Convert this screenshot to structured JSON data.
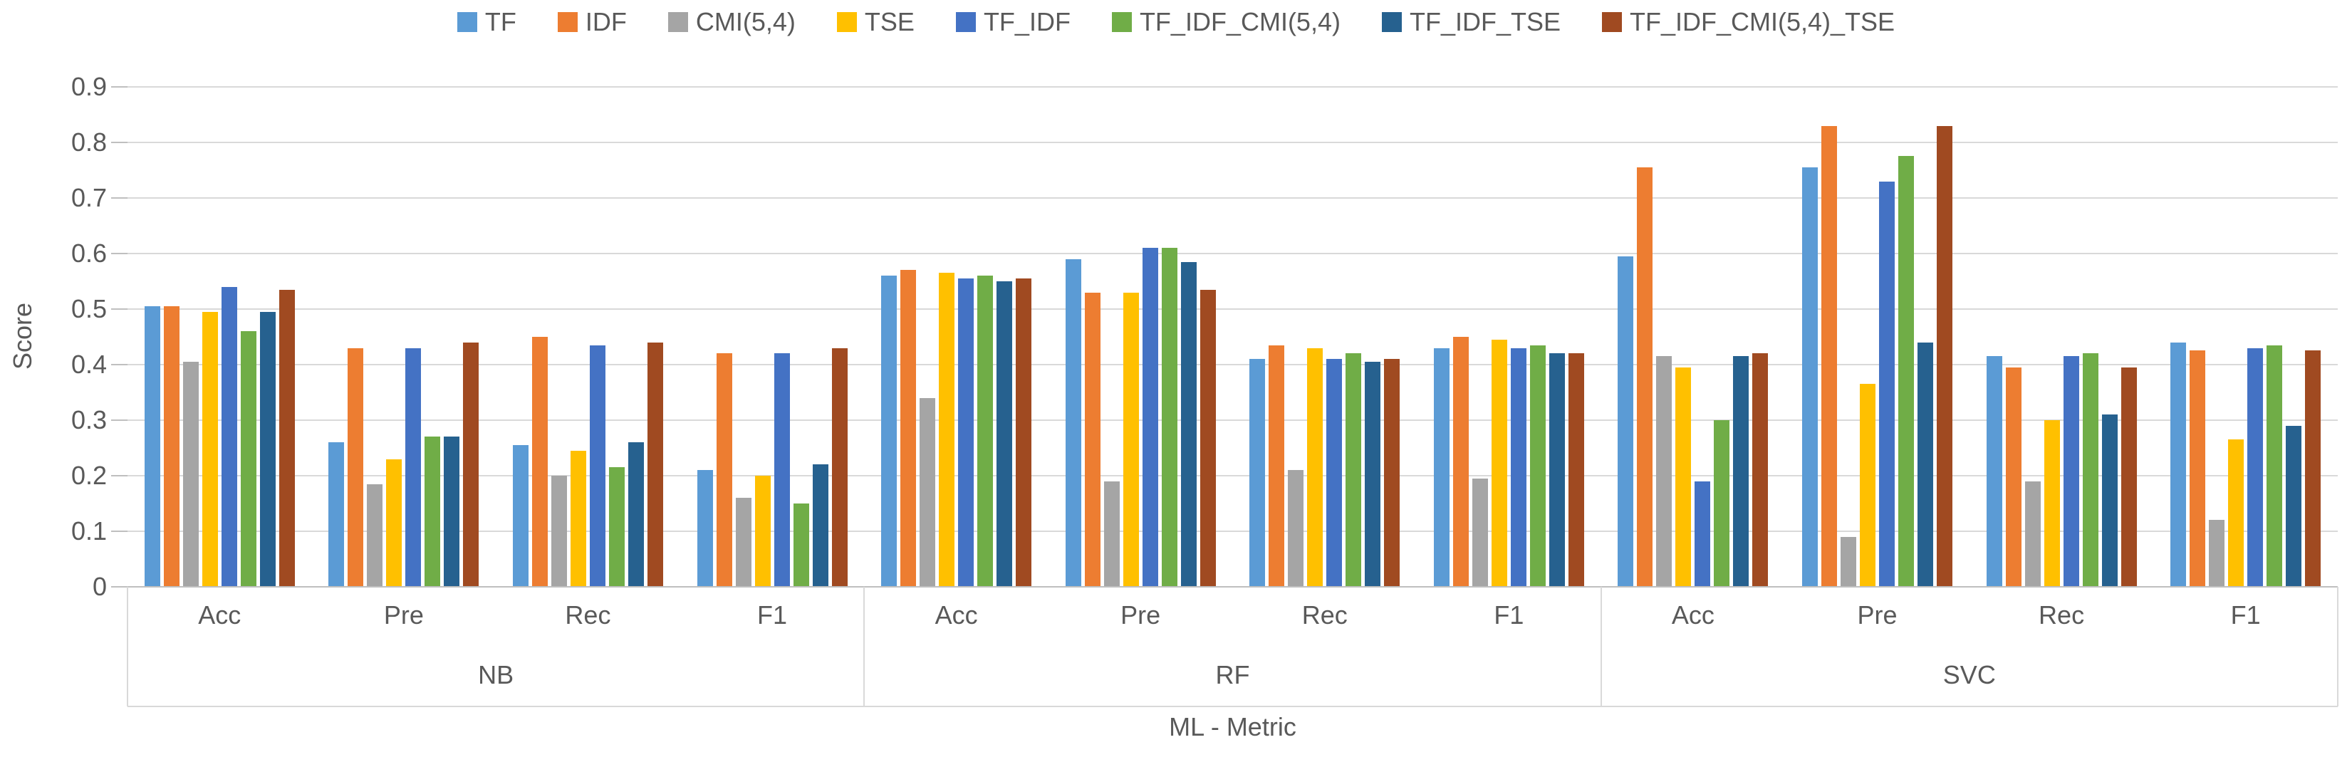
{
  "chart_data": {
    "type": "bar",
    "title": "",
    "ylabel": "Score",
    "xlabel": "ML - Metric",
    "ylim": [
      0,
      0.9
    ],
    "ytick_step": 0.1,
    "ytick_labels": [
      "0",
      "0.1",
      "0.2",
      "0.3",
      "0.4",
      "0.5",
      "0.6",
      "0.7",
      "0.8",
      "0.9"
    ],
    "grid": true,
    "legend_position": "top-center",
    "groups": [
      "NB",
      "RF",
      "SVC"
    ],
    "metrics": [
      "Acc",
      "Pre",
      "Rec",
      "F1"
    ],
    "categories": [
      "NB-Acc",
      "NB-Pre",
      "NB-Rec",
      "NB-F1",
      "RF-Acc",
      "RF-Pre",
      "RF-Rec",
      "RF-F1",
      "SVC-Acc",
      "SVC-Pre",
      "SVC-Rec",
      "SVC-F1"
    ],
    "series": [
      {
        "name": "TF",
        "color": "#5B9BD5",
        "values": [
          0.505,
          0.26,
          0.255,
          0.21,
          0.56,
          0.59,
          0.41,
          0.43,
          0.595,
          0.755,
          0.415,
          0.44
        ]
      },
      {
        "name": "IDF",
        "color": "#ED7D31",
        "values": [
          0.505,
          0.43,
          0.45,
          0.42,
          0.57,
          0.53,
          0.435,
          0.45,
          0.755,
          0.83,
          0.395,
          0.425
        ]
      },
      {
        "name": "CMI(5,4)",
        "color": "#A5A5A5",
        "values": [
          0.405,
          0.185,
          0.2,
          0.16,
          0.34,
          0.19,
          0.21,
          0.195,
          0.415,
          0.09,
          0.19,
          0.12
        ]
      },
      {
        "name": "TSE",
        "color": "#FFC000",
        "values": [
          0.495,
          0.23,
          0.245,
          0.2,
          0.565,
          0.53,
          0.43,
          0.445,
          0.395,
          0.365,
          0.3,
          0.265
        ]
      },
      {
        "name": "TF_IDF",
        "color": "#4472C4",
        "values": [
          0.54,
          0.43,
          0.435,
          0.42,
          0.555,
          0.61,
          0.41,
          0.43,
          0.19,
          0.73,
          0.415,
          0.43
        ]
      },
      {
        "name": "TF_IDF_CMI(5,4)",
        "color": "#70AD47",
        "values": [
          0.46,
          0.27,
          0.215,
          0.15,
          0.56,
          0.61,
          0.42,
          0.435,
          0.3,
          0.775,
          0.42,
          0.435
        ]
      },
      {
        "name": "TF_IDF_TSE",
        "color": "#26618F",
        "values": [
          0.495,
          0.27,
          0.26,
          0.22,
          0.55,
          0.585,
          0.405,
          0.42,
          0.415,
          0.44,
          0.31,
          0.29
        ]
      },
      {
        "name": "TF_IDF_CMI(5,4)_TSE",
        "color": "#A04A21",
        "values": [
          0.535,
          0.44,
          0.44,
          0.43,
          0.555,
          0.535,
          0.41,
          0.42,
          0.42,
          0.83,
          0.395,
          0.425
        ]
      }
    ]
  },
  "colors": {
    "text": "#595959",
    "gridline": "#D9D9D9",
    "axis_line": "#BFBFBF"
  }
}
